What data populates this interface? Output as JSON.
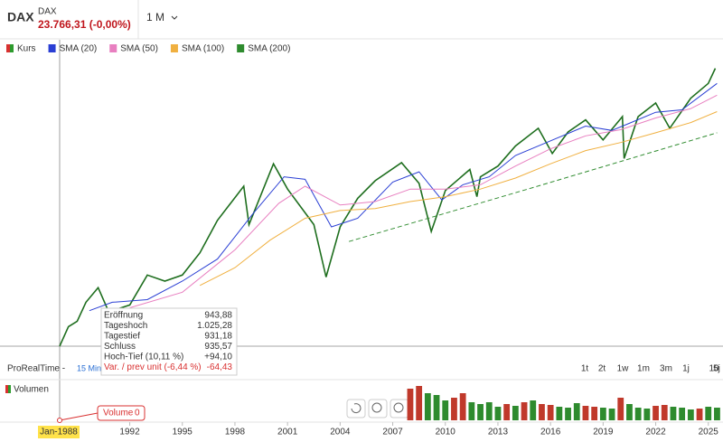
{
  "header": {
    "symbol": "DAX",
    "name": "DAX",
    "price": "23.766,31 (-0,00%)",
    "interval": "1 M"
  },
  "toolbar": {
    "source": "ProRealTime - ",
    "delay": "15 Min",
    "periods": [
      "1t",
      "2t",
      "1w",
      "1m",
      "3m",
      "1j",
      "5j",
      "10"
    ]
  },
  "tooltip": {
    "rows": [
      [
        "Eröffnung",
        "943,88"
      ],
      [
        "Tageshoch",
        "1.025,28"
      ],
      [
        "Tagestief",
        "931,18"
      ],
      [
        "Schluss",
        "935,57"
      ],
      [
        "Hoch-Tief (10,11 %)",
        "+94,10"
      ],
      [
        "Var. / prev unit (-6,44 %)",
        "-64,43"
      ]
    ]
  },
  "crosshair": {
    "date": "Jan-1988",
    "volume_label": "Volume",
    "volume_value": "0"
  },
  "chart_data": {
    "type": "line",
    "log_scale": true,
    "xlim": [
      1984.6,
      2025.58
    ],
    "ylim": [
      980,
      26500
    ],
    "xticks": [
      1992,
      1995,
      1998,
      2001,
      2004,
      2007,
      2010,
      2013,
      2016,
      2019,
      2022,
      2025
    ],
    "series": [
      {
        "name": "Kurs",
        "color": "#1e6e1e",
        "up_color": "#2e9b2e",
        "down_color": "#d93030",
        "x": [
          1988.0,
          1988.5,
          1989.0,
          1989.5,
          1990.2,
          1990.8,
          1992.0,
          1993.0,
          1994.0,
          1995.0,
          1996.0,
          1997.0,
          1998.5,
          1998.8,
          1999.9,
          2000.2,
          2001.0,
          2002.5,
          2003.2,
          2004.0,
          2005.0,
          2006.0,
          2007.5,
          2008.5,
          2009.2,
          2010.0,
          2011.4,
          2011.8,
          2012.0,
          2013.0,
          2014.0,
          2015.3,
          2016.1,
          2017.0,
          2018.0,
          2019.0,
          2020.1,
          2020.2,
          2021.0,
          2022.0,
          2022.8,
          2024.0,
          2025.0,
          2025.4
        ],
        "values": [
          1000,
          1250,
          1330,
          1650,
          1950,
          1480,
          1600,
          2250,
          2100,
          2250,
          2900,
          4200,
          6200,
          4000,
          6900,
          8000,
          6000,
          4000,
          2200,
          3900,
          5400,
          6600,
          8100,
          6400,
          3700,
          5900,
          7500,
          5500,
          6900,
          7800,
          9800,
          12000,
          9000,
          11500,
          13200,
          10500,
          13700,
          8500,
          13700,
          16000,
          12000,
          16900,
          20000,
          23766
        ]
      },
      {
        "name": "SMA (20)",
        "color": "#2a3fd4",
        "x": [
          1989.7,
          1991,
          1993,
          1995,
          1997,
          1999,
          2000.8,
          2002,
          2003.5,
          2005,
          2007,
          2008.5,
          2009.8,
          2011,
          2012.5,
          2014,
          2016,
          2018,
          2019.5,
          2020.5,
          2022,
          2023.5,
          2025.5
        ],
        "values": [
          1500,
          1650,
          1700,
          2100,
          2700,
          4500,
          6900,
          6700,
          3900,
          4300,
          6500,
          7300,
          5300,
          6300,
          6900,
          8800,
          10400,
          12300,
          11700,
          12700,
          14400,
          14800,
          20000
        ]
      },
      {
        "name": "SMA (50)",
        "color": "#e87fc0",
        "x": [
          1992,
          1995,
          1998,
          2000.5,
          2002,
          2004,
          2006,
          2008,
          2010,
          2012,
          2014,
          2016,
          2018,
          2020,
          2022,
          2024,
          2025.5
        ],
        "values": [
          1550,
          1850,
          3000,
          5100,
          6200,
          5000,
          5200,
          6000,
          6000,
          6300,
          7800,
          9500,
          11000,
          11800,
          13500,
          15000,
          17500
        ]
      },
      {
        "name": "SMA (100)",
        "color": "#f0b040",
        "x": [
          1996,
          1998,
          2000,
          2002,
          2004,
          2006,
          2008,
          2010,
          2012,
          2014,
          2016,
          2018,
          2020,
          2022,
          2024,
          2025.5
        ],
        "values": [
          2000,
          2450,
          3350,
          4300,
          4700,
          4800,
          5200,
          5500,
          6000,
          6800,
          8000,
          9300,
          10200,
          11400,
          12800,
          14500
        ]
      },
      {
        "name": "SMA (200)",
        "color": "#2e8b2e",
        "dashed": true,
        "x": [
          2004.5,
          2015,
          2025.5
        ],
        "values": [
          3300,
          6100,
          11400
        ]
      }
    ],
    "volume": {
      "name": "Volumen",
      "vlim": [
        0,
        40
      ],
      "up_color": "#2e8b2e",
      "down_color": "#c0392b",
      "x": [
        2008.0,
        2008.5,
        2009.0,
        2009.5,
        2010.0,
        2010.5,
        2011.0,
        2011.5,
        2012.0,
        2012.5,
        2013.0,
        2013.5,
        2014.0,
        2014.5,
        2015.0,
        2015.5,
        2016.0,
        2016.5,
        2017.0,
        2017.5,
        2018.0,
        2018.5,
        2019.0,
        2019.5,
        2020.0,
        2020.5,
        2021.0,
        2021.5,
        2022.0,
        2022.5,
        2023.0,
        2023.5,
        2024.0,
        2024.5,
        2025.0,
        2025.5
      ],
      "values": [
        35,
        38,
        30,
        28,
        22,
        25,
        30,
        20,
        18,
        20,
        15,
        18,
        16,
        20,
        22,
        18,
        17,
        15,
        14,
        19,
        16,
        15,
        14,
        13,
        25,
        18,
        14,
        13,
        16,
        17,
        15,
        14,
        12,
        13,
        15,
        14
      ],
      "up": [
        false,
        false,
        true,
        true,
        true,
        false,
        false,
        true,
        true,
        true,
        true,
        false,
        true,
        false,
        true,
        false,
        false,
        true,
        true,
        true,
        false,
        false,
        true,
        true,
        false,
        true,
        true,
        true,
        false,
        false,
        true,
        true,
        true,
        false,
        true,
        true
      ]
    }
  }
}
